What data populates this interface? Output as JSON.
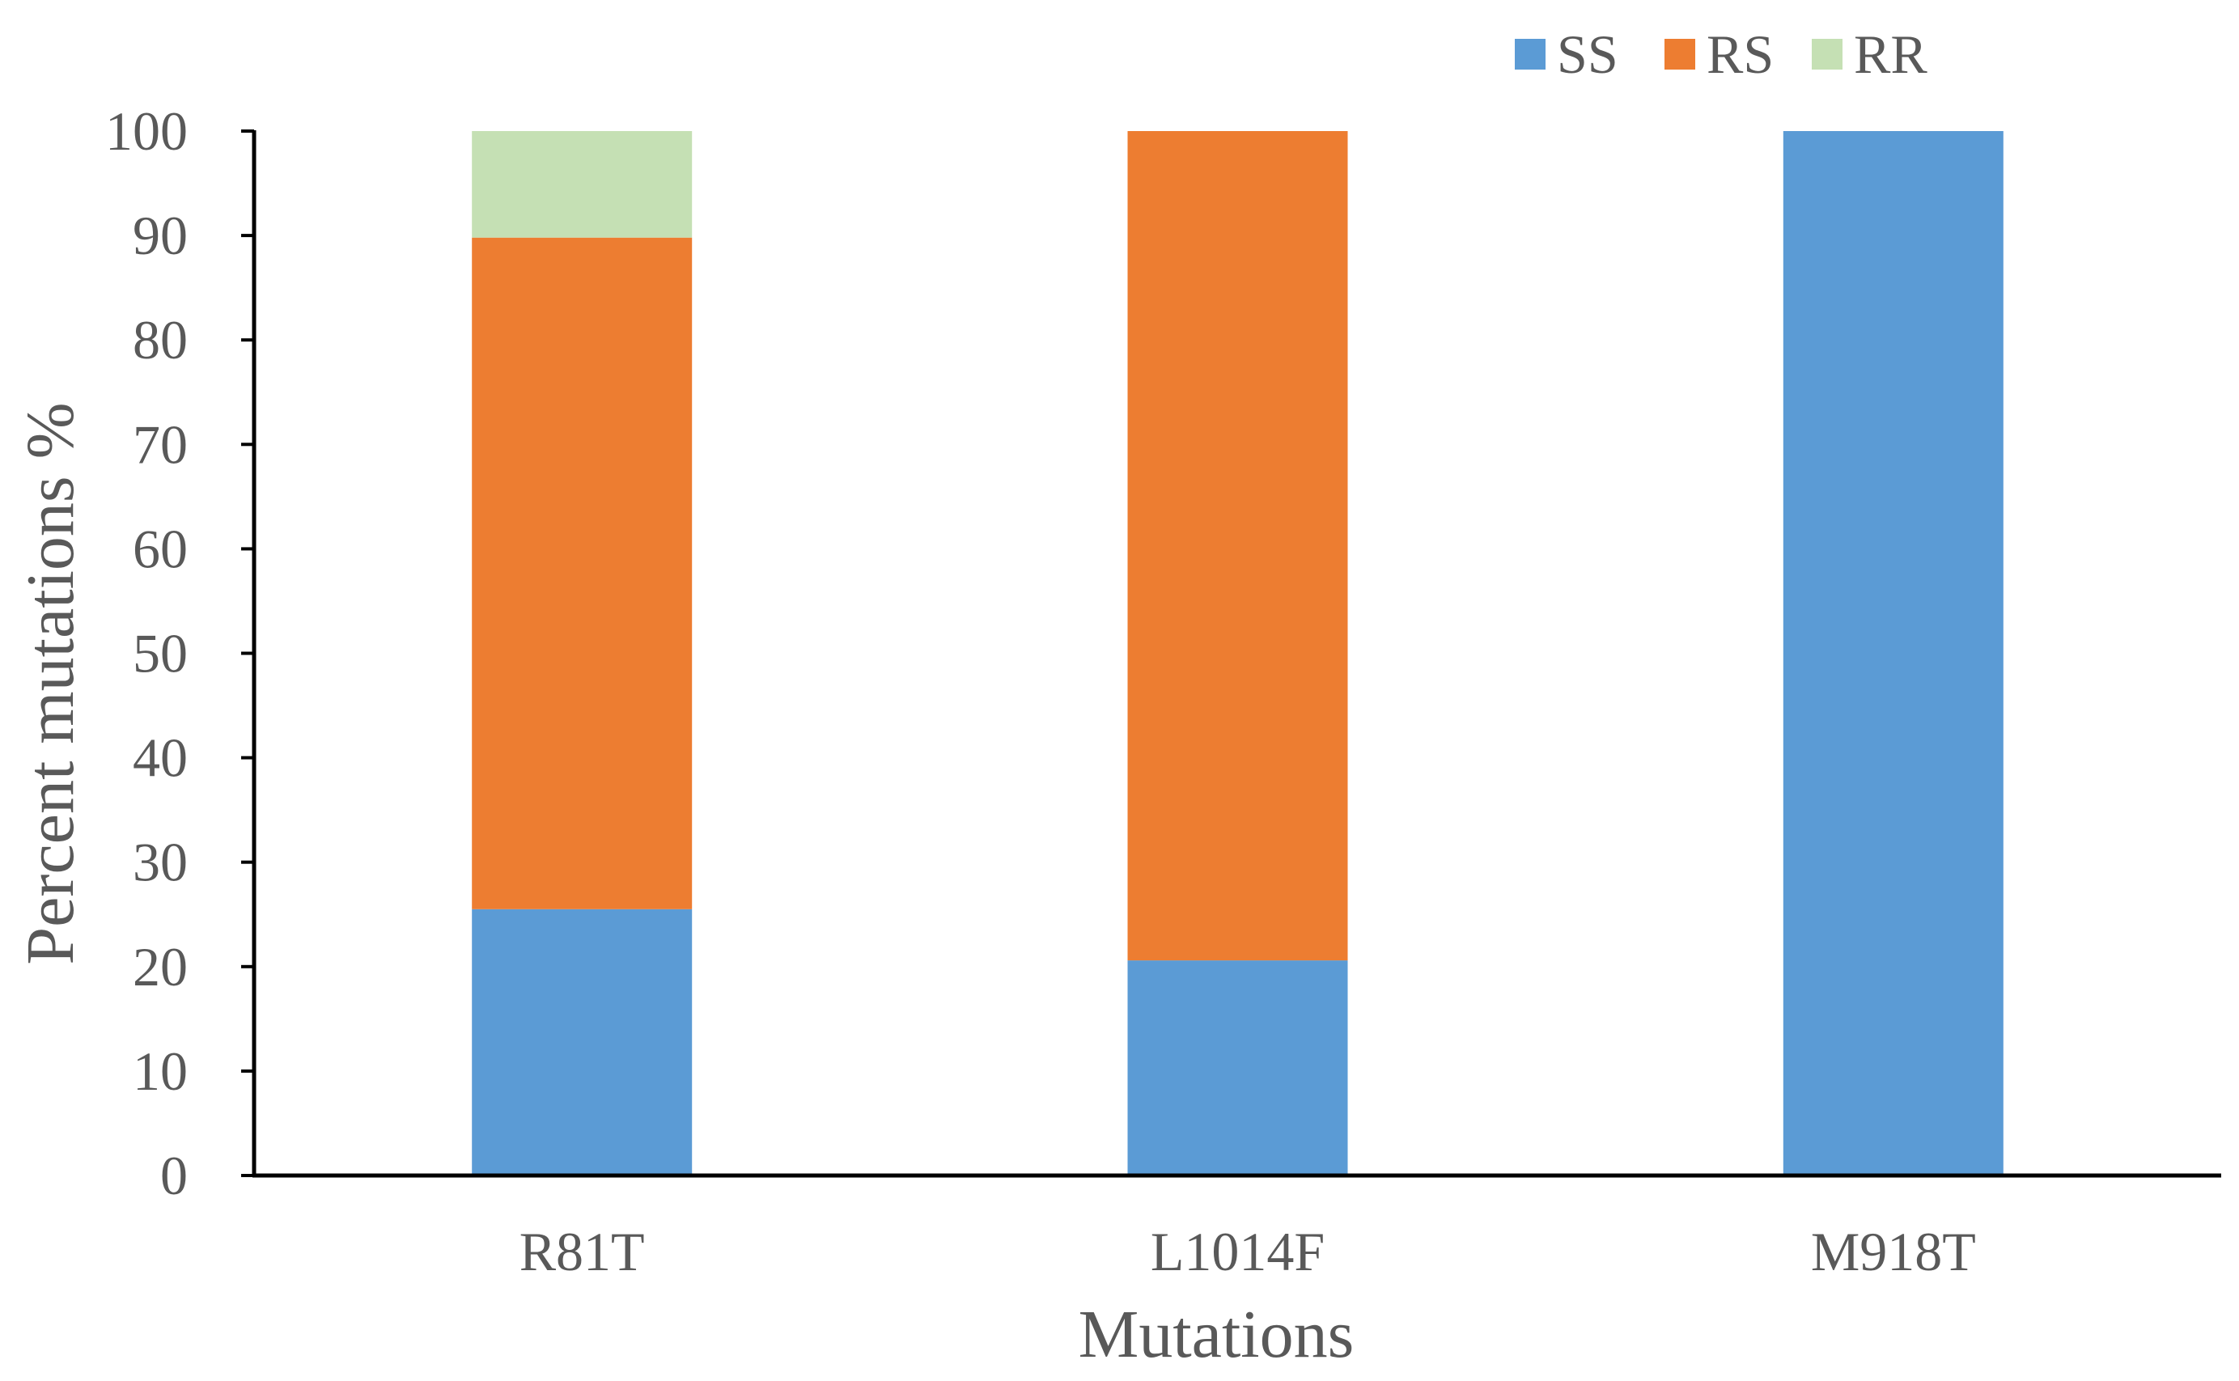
{
  "chart_data": {
    "type": "bar",
    "stacked": true,
    "categories": [
      "R81T",
      "L1014F",
      "M918T"
    ],
    "series": [
      {
        "name": "SS",
        "color": "#5B9BD5",
        "values": [
          25.5,
          20.6,
          100
        ]
      },
      {
        "name": "RS",
        "color": "#ED7D31",
        "values": [
          64.3,
          79.4,
          0
        ]
      },
      {
        "name": "RR",
        "color": "#C5E0B4",
        "values": [
          10.2,
          0,
          0
        ]
      }
    ],
    "title": "",
    "xlabel": "Mutations",
    "ylabel": "Percent mutations %",
    "ylim": [
      0,
      100
    ],
    "yticks": [
      0,
      10,
      20,
      30,
      40,
      50,
      60,
      70,
      80,
      90,
      100
    ],
    "grid": false,
    "legend_position": "top-right"
  }
}
